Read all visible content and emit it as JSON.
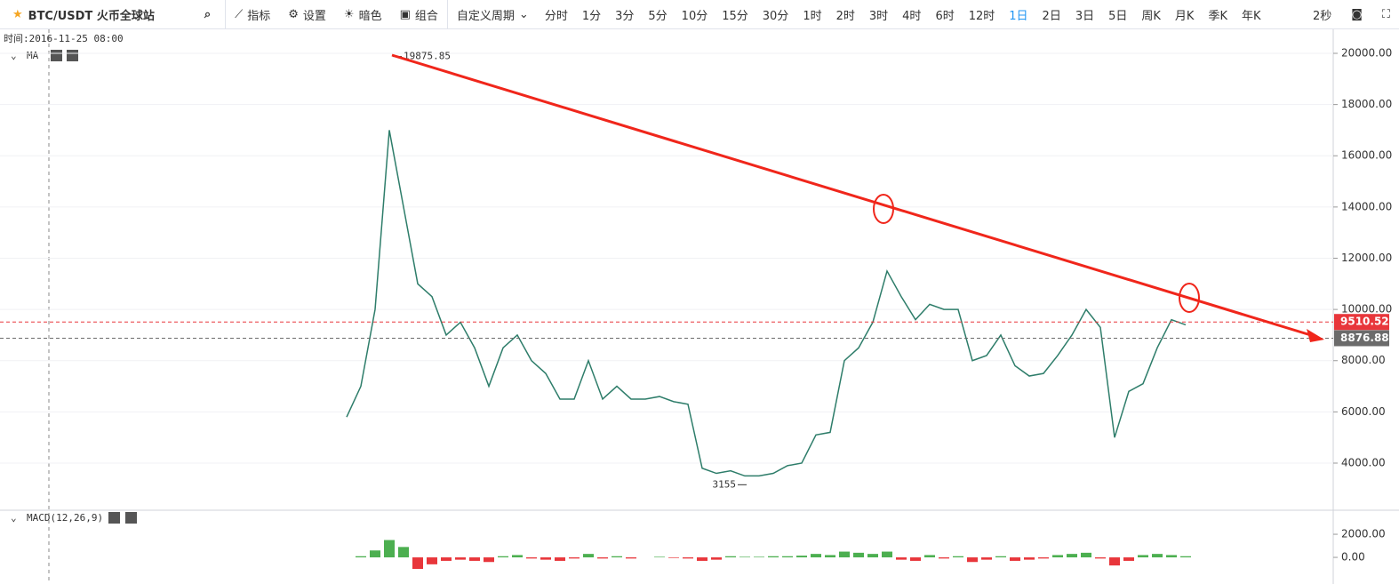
{
  "toolbar": {
    "symbol": "BTC/USDT 火币全球站",
    "buttons": [
      "指标",
      "设置",
      "暗色",
      "组合"
    ],
    "custom_period": "自定义周期",
    "periods": [
      "分时",
      "1分",
      "3分",
      "5分",
      "10分",
      "15分",
      "30分",
      "1时",
      "2时",
      "3时",
      "4时",
      "6时",
      "12时",
      "1日",
      "2日",
      "3日",
      "5日",
      "周K",
      "月K",
      "季K",
      "年K"
    ],
    "selected_index": 13,
    "refresh": "2秒"
  },
  "info": {
    "time": "时间:2016-11-25 08:00",
    "ma": "MA"
  },
  "chart_data": [
    {
      "type": "line",
      "color": "#2e7d6a",
      "values": [
        5800,
        7000,
        10000,
        17000,
        14000,
        11000,
        10500,
        9000,
        9500,
        8500,
        7000,
        8500,
        9000,
        8000,
        7500,
        6500,
        6500,
        8000,
        6500,
        7000,
        6500,
        6500,
        6600,
        6400,
        6300,
        3800,
        3600,
        3700,
        3500,
        3500,
        3600,
        3900,
        4000,
        5100,
        5200,
        8000,
        8500,
        9500,
        11500,
        10500,
        9600,
        10200,
        10000,
        10000,
        8000,
        8200,
        9000,
        7800,
        7400,
        7500,
        8200,
        9000,
        10000,
        9300,
        5000,
        6800,
        7100,
        8500,
        9600,
        9400
      ],
      "ylim": [
        2195,
        20833
      ],
      "yticks": [
        {
          "value": 4000,
          "label": "4000.00"
        },
        {
          "value": 6000,
          "label": "6000.00"
        },
        {
          "value": 8000,
          "label": "8000.00"
        },
        {
          "value": 10000,
          "label": "10000.00"
        },
        {
          "value": 12000,
          "label": "12000.00"
        },
        {
          "value": 14000,
          "label": "14000.00"
        },
        {
          "value": 16000,
          "label": "16000.00"
        },
        {
          "value": 18000,
          "label": "18000.00"
        },
        {
          "value": 20000,
          "label": "20000.00"
        }
      ],
      "grid": true,
      "high": 19875.85,
      "low": 3155,
      "price_tags": [
        {
          "value": 9510.52,
          "color": "#e8363b"
        },
        {
          "value": 8876.88,
          "color": "#6b6b6b"
        }
      ]
    },
    {
      "type": "bar",
      "title": "MACD(12,26,9)",
      "colors": {
        "positive": "#4caf50",
        "negative": "#e8363b"
      },
      "values": [
        0,
        100,
        600,
        1500,
        900,
        -1000,
        -600,
        -300,
        -200,
        -300,
        -400,
        100,
        200,
        -100,
        -200,
        -300,
        -100,
        300,
        -100,
        100,
        -100,
        0,
        50,
        -50,
        -100,
        -300,
        -200,
        100,
        50,
        50,
        100,
        100,
        150,
        300,
        200,
        500,
        400,
        300,
        500,
        -200,
        -300,
        200,
        -100,
        100,
        -400,
        -200,
        100,
        -300,
        -200,
        -100,
        200,
        300,
        400,
        -100,
        -700,
        -300,
        200,
        300,
        200,
        100
      ],
      "ylim": [
        -2150,
        3850
      ],
      "yticks": [
        {
          "value": 0,
          "label": "0.00"
        },
        {
          "value": 2000,
          "label": "2000.00"
        }
      ]
    }
  ]
}
